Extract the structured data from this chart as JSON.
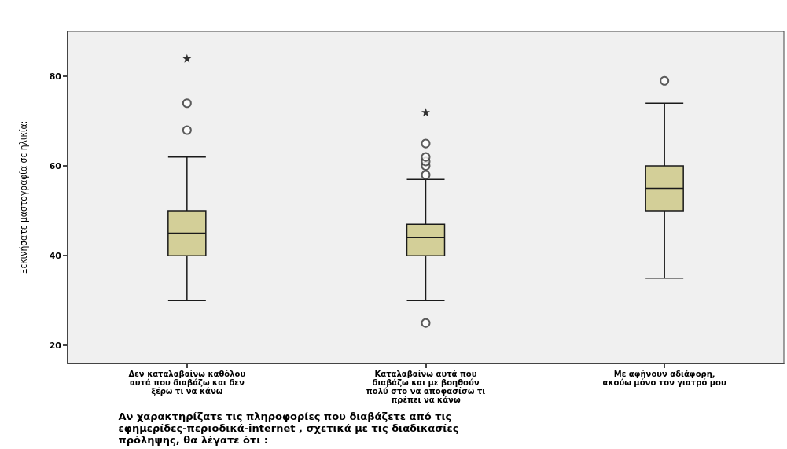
{
  "chart_data": {
    "type": "box",
    "xlabel": "Αν χαρακτηρίζατε τις πληροφορίες που διαβάζετε από τις εφημερίδες-περιοδικά-internet , σχετικά με τις διαδικασίες πρόληψης, θα λέγατε ότι :",
    "ylabel": "Ξεκινήσατε μαστογραφία σε ηλικία:",
    "categories": [
      "Δεν καταλαβαίνω καθόλου αυτά που διαβάζω και δεν ξέρω τι να κάνω",
      "Καταλαβαίνω αυτά που διαβάζω και με βοηθούν πολύ στο να αποφασίσω τι πρέπει να κάνω",
      "Με αφήνουν αδιάφορη, ακούω μόνο τον γιατρό μου"
    ],
    "color": "#d3cf98",
    "boxes": [
      {
        "low": 30,
        "q1": 40,
        "median": 45,
        "q3": 50,
        "high": 62,
        "outliers": [
          68,
          74
        ]
      },
      {
        "low": 30,
        "q1": 40,
        "median": 44,
        "q3": 47,
        "high": 57,
        "outliers": [
          58,
          60,
          61,
          62,
          65,
          25
        ]
      },
      {
        "low": 35,
        "q1": 50,
        "median": 55,
        "q3": 60,
        "high": 74,
        "outliers": [
          79
        ]
      }
    ],
    "series": [
      {
        "type": "scatter",
        "marker": "star",
        "color": "#000000",
        "x": [
          "Δεν καταλαβαίνω καθόλου αυτά που διαβάζω και δεν ξέρω τι να κάνω",
          "Καταλαβαίνω αυτά που διαβάζω και με βοηθούν πολύ στο να αποφασίσω τι πρέπει να κάνω"
        ],
        "values": [
          84,
          72
        ]
      }
    ],
    "ylim": [
      16,
      90
    ],
    "yticks": [
      20,
      40,
      60,
      80
    ],
    "grid": false,
    "legend": false
  }
}
